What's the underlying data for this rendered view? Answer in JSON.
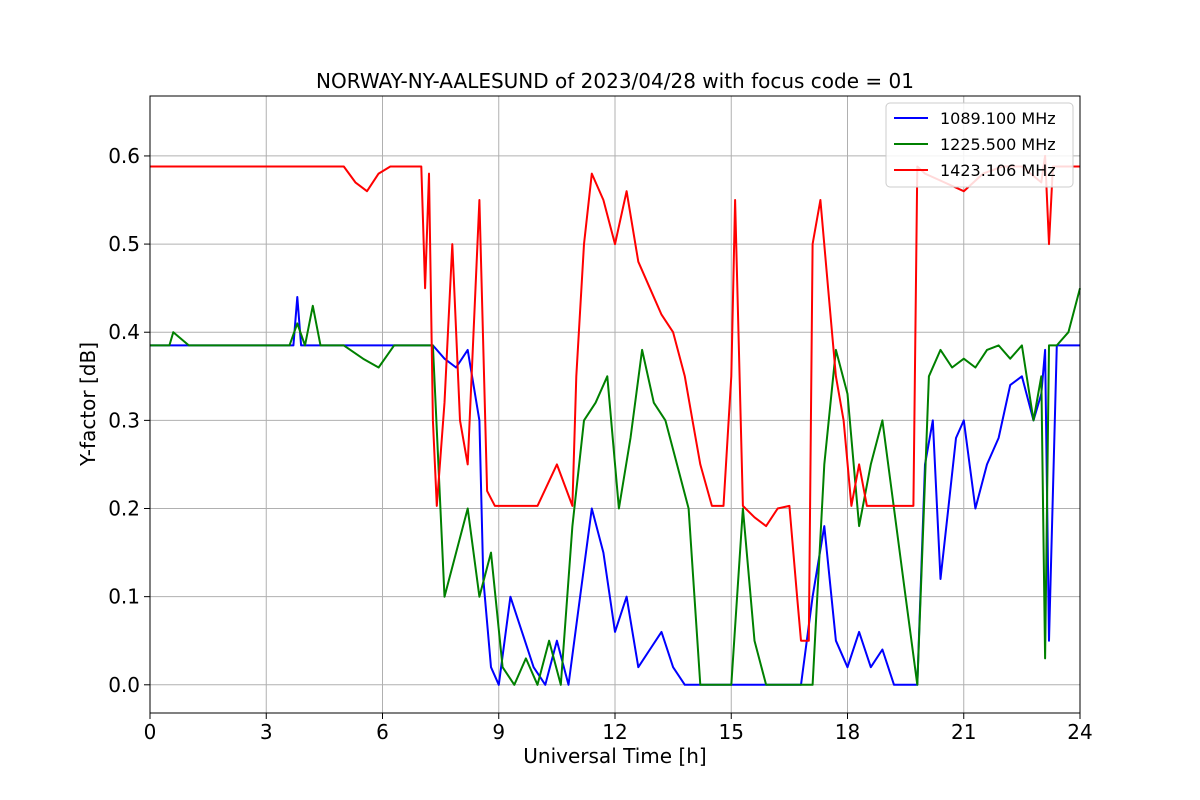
{
  "chart_data": {
    "type": "line",
    "title": "NORWAY-NY-AALESUND of 2023/04/28 with focus code = 01",
    "xlabel": "Universal Time [h]",
    "ylabel": "Y-factor [dB]",
    "xlim": [
      0,
      24
    ],
    "ylim": [
      -0.032,
      0.668
    ],
    "xticks": [
      0,
      3,
      6,
      9,
      12,
      15,
      18,
      21,
      24
    ],
    "xtick_labels": [
      "0",
      "3",
      "6",
      "9",
      "12",
      "15",
      "18",
      "21",
      "24"
    ],
    "yticks": [
      0.0,
      0.1,
      0.2,
      0.3,
      0.4,
      0.5,
      0.6
    ],
    "ytick_labels": [
      "0.0",
      "0.1",
      "0.2",
      "0.3",
      "0.4",
      "0.5",
      "0.6"
    ],
    "grid": true,
    "legend_position": "top-right",
    "series": [
      {
        "name": "1089.100 MHz",
        "color": "#0000ff",
        "x": [
          0,
          0.5,
          1.0,
          3.7,
          3.8,
          3.9,
          6.0,
          7.0,
          7.3,
          7.6,
          7.9,
          8.2,
          8.5,
          8.6,
          8.8,
          9.0,
          9.3,
          9.6,
          9.9,
          10.2,
          10.5,
          10.8,
          11.1,
          11.4,
          11.7,
          12.0,
          12.3,
          12.6,
          12.9,
          13.2,
          13.5,
          13.8,
          14.1,
          14.4,
          14.7,
          15.0,
          15.3,
          15.6,
          15.9,
          16.2,
          16.5,
          16.8,
          17.1,
          17.4,
          17.7,
          18.0,
          18.3,
          18.6,
          18.9,
          19.2,
          19.5,
          19.8,
          20.0,
          20.2,
          20.4,
          20.6,
          20.8,
          21.0,
          21.3,
          21.6,
          21.9,
          22.2,
          22.5,
          22.8,
          23.0,
          23.1,
          23.2,
          23.4,
          24.0
        ],
        "values": [
          0.385,
          0.385,
          0.385,
          0.385,
          0.44,
          0.385,
          0.385,
          0.385,
          0.385,
          0.37,
          0.36,
          0.38,
          0.3,
          0.12,
          0.02,
          0.0,
          0.1,
          0.06,
          0.02,
          0.0,
          0.05,
          0.0,
          0.1,
          0.2,
          0.15,
          0.06,
          0.1,
          0.02,
          0.04,
          0.06,
          0.02,
          0.0,
          0.0,
          0.0,
          0.0,
          0.0,
          0.0,
          0.0,
          0.0,
          0.0,
          0.0,
          0.0,
          0.1,
          0.18,
          0.05,
          0.02,
          0.06,
          0.02,
          0.04,
          0.0,
          0.0,
          0.0,
          0.25,
          0.3,
          0.12,
          0.2,
          0.28,
          0.3,
          0.2,
          0.25,
          0.28,
          0.34,
          0.35,
          0.3,
          0.33,
          0.38,
          0.05,
          0.385,
          0.385
        ]
      },
      {
        "name": "1225.500 MHz",
        "color": "#008000",
        "x": [
          0,
          0.5,
          0.6,
          1.0,
          3.6,
          3.8,
          4.0,
          4.2,
          4.4,
          5.0,
          5.5,
          5.9,
          6.3,
          7.0,
          7.3,
          7.6,
          7.9,
          8.2,
          8.5,
          8.8,
          9.1,
          9.4,
          9.7,
          10.0,
          10.3,
          10.6,
          10.9,
          11.2,
          11.5,
          11.8,
          12.1,
          12.4,
          12.7,
          13.0,
          13.3,
          13.6,
          13.9,
          14.2,
          14.5,
          14.8,
          15.0,
          15.3,
          15.6,
          15.9,
          16.2,
          16.5,
          16.8,
          17.1,
          17.4,
          17.7,
          18.0,
          18.3,
          18.6,
          18.9,
          19.2,
          19.5,
          19.8,
          20.1,
          20.4,
          20.7,
          21.0,
          21.3,
          21.6,
          21.9,
          22.2,
          22.5,
          22.8,
          23.0,
          23.1,
          23.2,
          23.4,
          23.7,
          24.0
        ],
        "values": [
          0.385,
          0.385,
          0.4,
          0.385,
          0.385,
          0.41,
          0.385,
          0.43,
          0.385,
          0.385,
          0.37,
          0.36,
          0.385,
          0.385,
          0.385,
          0.1,
          0.15,
          0.2,
          0.1,
          0.15,
          0.02,
          0.0,
          0.03,
          0.0,
          0.05,
          0.0,
          0.18,
          0.3,
          0.32,
          0.35,
          0.2,
          0.28,
          0.38,
          0.32,
          0.3,
          0.25,
          0.2,
          0.0,
          0.0,
          0.0,
          0.0,
          0.2,
          0.05,
          0.0,
          0.0,
          0.0,
          0.0,
          0.0,
          0.25,
          0.38,
          0.33,
          0.18,
          0.25,
          0.3,
          0.2,
          0.1,
          0.0,
          0.35,
          0.38,
          0.36,
          0.37,
          0.36,
          0.38,
          0.385,
          0.37,
          0.385,
          0.3,
          0.35,
          0.03,
          0.385,
          0.385,
          0.4,
          0.45
        ]
      },
      {
        "name": "1423.106 MHz",
        "color": "#ff0000",
        "x": [
          0,
          0.3,
          0.6,
          1.0,
          5.0,
          5.3,
          5.6,
          5.9,
          6.2,
          7.0,
          7.1,
          7.2,
          7.3,
          7.4,
          7.6,
          7.8,
          8.0,
          8.2,
          8.4,
          8.5,
          8.7,
          8.9,
          9.2,
          9.6,
          10.0,
          10.5,
          10.9,
          11.0,
          11.2,
          11.4,
          11.7,
          12.0,
          12.3,
          12.6,
          12.9,
          13.2,
          13.5,
          13.8,
          14.0,
          14.2,
          14.5,
          14.8,
          15.0,
          15.1,
          15.3,
          15.6,
          15.9,
          16.2,
          16.5,
          16.7,
          16.8,
          17.0,
          17.1,
          17.3,
          17.5,
          17.7,
          17.9,
          18.1,
          18.3,
          18.5,
          18.8,
          19.1,
          19.4,
          19.7,
          19.8,
          20.0,
          20.5,
          21.0,
          21.5,
          22.0,
          22.5,
          23.0,
          23.1,
          23.2,
          23.3,
          23.4,
          24.0
        ],
        "values": [
          0.588,
          0.588,
          0.588,
          0.588,
          0.588,
          0.57,
          0.56,
          0.58,
          0.588,
          0.588,
          0.45,
          0.58,
          0.3,
          0.203,
          0.32,
          0.5,
          0.3,
          0.25,
          0.45,
          0.55,
          0.22,
          0.203,
          0.203,
          0.203,
          0.203,
          0.25,
          0.203,
          0.35,
          0.5,
          0.58,
          0.55,
          0.5,
          0.56,
          0.48,
          0.45,
          0.42,
          0.4,
          0.35,
          0.3,
          0.25,
          0.203,
          0.203,
          0.35,
          0.55,
          0.203,
          0.19,
          0.18,
          0.2,
          0.203,
          0.1,
          0.05,
          0.05,
          0.5,
          0.55,
          0.45,
          0.35,
          0.3,
          0.203,
          0.25,
          0.203,
          0.203,
          0.203,
          0.203,
          0.203,
          0.588,
          0.58,
          0.57,
          0.56,
          0.58,
          0.588,
          0.588,
          0.57,
          0.6,
          0.5,
          0.588,
          0.588,
          0.588
        ]
      }
    ]
  }
}
